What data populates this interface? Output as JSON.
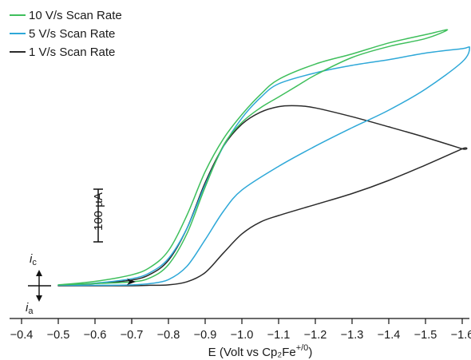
{
  "chart_data": {
    "type": "line",
    "title": "",
    "xlabel": "E (Volt vs Cp₂Fe",
    "xlabel_superscript": "+/0",
    "xlabel_close": ")",
    "ylabel": "",
    "xlim": [
      -0.4,
      -1.6
    ],
    "x_reversed": true,
    "x_ticks": [
      {
        "value": -0.4,
        "label": "−0.4"
      },
      {
        "value": -0.5,
        "label": "−0.5"
      },
      {
        "value": -0.6,
        "label": "−0.6"
      },
      {
        "value": -0.7,
        "label": "−0.7"
      },
      {
        "value": -0.8,
        "label": "−0.8"
      },
      {
        "value": -0.9,
        "label": "−0.9"
      },
      {
        "value": -1.0,
        "label": "−1.0"
      },
      {
        "value": -1.1,
        "label": "−1.1"
      },
      {
        "value": -1.2,
        "label": "−1.2"
      },
      {
        "value": -1.3,
        "label": "−1.3"
      },
      {
        "value": -1.4,
        "label": "−1.4"
      },
      {
        "value": -1.5,
        "label": "−1.5"
      },
      {
        "value": -1.6,
        "label": "−1.6"
      }
    ],
    "ylim": [
      -50,
      680
    ],
    "y_unit": "µA",
    "grid": false,
    "legend_position": "top-left",
    "scale_bar": {
      "label": "100 µA",
      "value": 100
    },
    "current_labels": {
      "cathodic": "i",
      "cathodic_sub": "c",
      "anodic": "i",
      "anodic_sub": "a"
    },
    "series": [
      {
        "name": "10 V/s Scan Rate",
        "color": "#3fbf5c",
        "x": [
          -0.5,
          -0.6,
          -0.7,
          -0.75,
          -0.8,
          -0.85,
          -0.9,
          -0.95,
          -1.0,
          -1.05,
          -1.1,
          -1.2,
          -1.3,
          -1.4,
          -1.5,
          -1.56,
          -1.5,
          -1.4,
          -1.3,
          -1.2,
          -1.15,
          -1.1,
          -1.05,
          -1.0,
          -0.95,
          -0.9,
          -0.85,
          -0.8,
          -0.75,
          -0.7,
          -0.6,
          -0.5
        ],
        "y": [
          2,
          10,
          25,
          42,
          80,
          160,
          260,
          335,
          390,
          435,
          470,
          505,
          528,
          553,
          572,
          583,
          563,
          545,
          520,
          480,
          455,
          430,
          405,
          372,
          320,
          225,
          118,
          48,
          18,
          9,
          5,
          2
        ]
      },
      {
        "name": "5 V/s Scan Rate",
        "color": "#2ea8d8",
        "x": [
          -0.5,
          -0.6,
          -0.7,
          -0.75,
          -0.8,
          -0.85,
          -0.9,
          -0.95,
          -1.0,
          -1.05,
          -1.1,
          -1.2,
          -1.3,
          -1.4,
          -1.5,
          -1.6,
          -1.62,
          -1.6,
          -1.5,
          -1.4,
          -1.3,
          -1.2,
          -1.1,
          -1.0,
          -0.95,
          -0.9,
          -0.85,
          -0.8,
          -0.75,
          -0.7,
          -0.6,
          -0.5
        ],
        "y": [
          1,
          6,
          16,
          30,
          62,
          130,
          230,
          318,
          382,
          428,
          460,
          485,
          502,
          515,
          530,
          540,
          542,
          510,
          448,
          400,
          360,
          318,
          272,
          218,
          170,
          105,
          44,
          14,
          5,
          2,
          1,
          1
        ]
      },
      {
        "name": "1 V/s Scan Rate",
        "color": "#2b2b2b",
        "x": [
          -0.5,
          -0.6,
          -0.7,
          -0.75,
          -0.8,
          -0.85,
          -0.9,
          -0.95,
          -1.0,
          -1.05,
          -1.1,
          -1.15,
          -1.2,
          -1.3,
          -1.4,
          -1.5,
          -1.6,
          -1.6,
          -1.5,
          -1.4,
          -1.3,
          -1.2,
          -1.1,
          -1.05,
          -1.0,
          -0.95,
          -0.9,
          -0.85,
          -0.8,
          -0.75,
          -0.7,
          -0.6,
          -0.5
        ],
        "y": [
          1,
          5,
          13,
          26,
          58,
          130,
          235,
          318,
          368,
          395,
          408,
          410,
          405,
          385,
          362,
          338,
          312,
          312,
          275,
          240,
          210,
          185,
          160,
          145,
          118,
          75,
          30,
          9,
          2,
          1,
          0,
          0,
          0
        ]
      }
    ]
  }
}
